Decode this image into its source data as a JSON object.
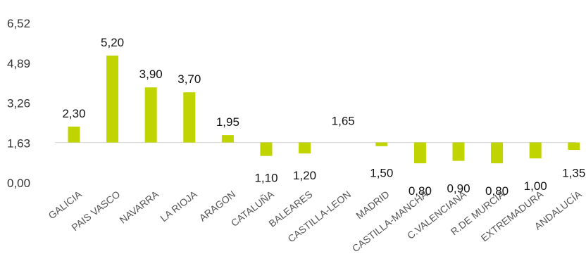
{
  "chart_data": {
    "type": "bar",
    "title": "",
    "xlabel": "",
    "ylabel": "",
    "categories": [
      "GALICIA",
      "PAIS VASCO",
      "NAVARRA",
      "LA RIOJA",
      "ARAGON",
      "CATALUÑA",
      "BALEARES",
      "CASTILLA-LEON",
      "MADRID",
      "CASTILLA-MANCHA",
      "C.VALENCIANA",
      "R.DE MURCIA",
      "EXTREMADURA",
      "ANDALUCÍA"
    ],
    "values": [
      2.3,
      5.2,
      3.9,
      3.7,
      1.95,
      1.1,
      1.2,
      1.65,
      1.5,
      0.8,
      0.9,
      0.8,
      1.0,
      1.35
    ],
    "value_labels": [
      "2,30",
      "5,20",
      "3,90",
      "3,70",
      "1,95",
      "1,10",
      "1,20",
      "1,65",
      "1,50",
      "0,80",
      "0,90",
      "0,80",
      "1,00",
      "1,35"
    ],
    "baseline": 1.65,
    "ylim": [
      0,
      6.52
    ],
    "yticks": [
      0,
      1.63,
      3.26,
      4.89,
      6.52
    ],
    "ytick_labels": [
      "0,00",
      "1,63",
      "3,26",
      "4,89",
      "6,52"
    ],
    "grid": false,
    "legend": "none",
    "bar_color": "#c0d500",
    "axis_color": "#d9d9d9"
  }
}
